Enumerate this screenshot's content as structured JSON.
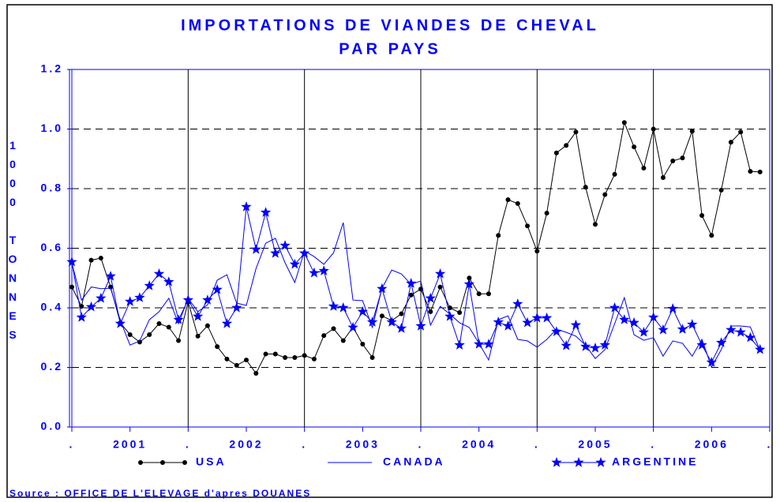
{
  "chart_data": {
    "type": "line",
    "title_lines": [
      "IMPORTATIONS DE VIANDES DE CHEVAL",
      "PAR PAYS"
    ],
    "y_label": "1000 TONNES",
    "source": "Source : OFFICE DE L'ELEVAGE d'apres DOUANES",
    "x": [
      0,
      1,
      2,
      3,
      4,
      5,
      6,
      7,
      8,
      9,
      10,
      11,
      12,
      13,
      14,
      15,
      16,
      17,
      18,
      19,
      20,
      21,
      22,
      23,
      24,
      25,
      26,
      27,
      28,
      29,
      30,
      31,
      32,
      33,
      34,
      35,
      36,
      37,
      38,
      39,
      40,
      41,
      42,
      43,
      44,
      45,
      46,
      47,
      48,
      49,
      50,
      51,
      52,
      53,
      54,
      55,
      56,
      57,
      58,
      59,
      60,
      61,
      62,
      63,
      64,
      65,
      66,
      67,
      68,
      69,
      70,
      71
    ],
    "series": [
      {
        "name": "USA",
        "color": "#000000",
        "marker": "circle",
        "values": [
          0.47,
          0.405,
          0.56,
          0.567,
          0.47,
          0.35,
          0.31,
          0.285,
          0.31,
          0.347,
          0.335,
          0.29,
          0.42,
          0.305,
          0.34,
          0.27,
          0.228,
          0.207,
          0.225,
          0.18,
          0.245,
          0.245,
          0.233,
          0.233,
          0.24,
          0.228,
          0.307,
          0.33,
          0.29,
          0.335,
          0.278,
          0.233,
          0.373,
          0.357,
          0.38,
          0.443,
          0.463,
          0.387,
          0.47,
          0.4,
          0.384,
          0.5,
          0.447,
          0.447,
          0.643,
          0.763,
          0.75,
          0.675,
          0.59,
          0.718,
          0.92,
          0.945,
          0.99,
          0.805,
          0.68,
          0.78,
          0.848,
          1.022,
          0.94,
          0.869,
          1.0,
          0.837,
          0.893,
          0.903,
          0.993,
          0.71,
          0.643,
          0.795,
          0.956,
          0.99,
          0.858,
          0.856
        ]
      },
      {
        "name": "CANADA",
        "color": "#0000ff",
        "marker": "none",
        "values": [
          0.55,
          0.426,
          0.47,
          0.464,
          0.466,
          0.358,
          0.275,
          0.289,
          0.36,
          0.387,
          0.432,
          0.347,
          0.432,
          0.387,
          0.41,
          0.493,
          0.511,
          0.416,
          0.408,
          0.532,
          0.617,
          0.633,
          0.551,
          0.485,
          0.591,
          0.572,
          0.546,
          0.585,
          0.686,
          0.426,
          0.424,
          0.334,
          0.466,
          0.527,
          0.514,
          0.479,
          0.49,
          0.342,
          0.405,
          0.379,
          0.35,
          0.334,
          0.281,
          0.225,
          0.36,
          0.373,
          0.294,
          0.289,
          0.268,
          0.294,
          0.328,
          0.318,
          0.305,
          0.275,
          0.23,
          0.26,
          0.347,
          0.434,
          0.31,
          0.291,
          0.3,
          0.238,
          0.289,
          0.281,
          0.238,
          0.294,
          0.201,
          0.26,
          0.339,
          0.339,
          0.336,
          0.257
        ]
      },
      {
        "name": "ARGENTINE",
        "color": "#0000ff",
        "marker": "star",
        "values": [
          0.554,
          0.368,
          0.403,
          0.432,
          0.506,
          0.347,
          0.421,
          0.434,
          0.474,
          0.514,
          0.487,
          0.36,
          0.426,
          0.371,
          0.426,
          0.461,
          0.347,
          0.4,
          0.739,
          0.596,
          0.72,
          0.583,
          0.609,
          0.546,
          0.583,
          0.517,
          0.524,
          0.405,
          0.4,
          0.334,
          0.387,
          0.352,
          0.464,
          0.352,
          0.331,
          0.482,
          0.339,
          0.432,
          0.514,
          0.371,
          0.275,
          0.479,
          0.278,
          0.278,
          0.352,
          0.339,
          0.413,
          0.35,
          0.366,
          0.366,
          0.32,
          0.273,
          0.342,
          0.27,
          0.265,
          0.275,
          0.4,
          0.36,
          0.35,
          0.318,
          0.368,
          0.326,
          0.397,
          0.328,
          0.344,
          0.275,
          0.217,
          0.283,
          0.326,
          0.318,
          0.3,
          0.26
        ]
      }
    ],
    "xlim": [
      0,
      72
    ],
    "xticks": [
      {
        "value": 0,
        "label": "."
      },
      {
        "value": 6,
        "label": "2001"
      },
      {
        "value": 12,
        "label": "."
      },
      {
        "value": 18,
        "label": "2002"
      },
      {
        "value": 24,
        "label": "."
      },
      {
        "value": 30,
        "label": "2003"
      },
      {
        "value": 36,
        "label": "."
      },
      {
        "value": 42,
        "label": "2004"
      },
      {
        "value": 48,
        "label": "."
      },
      {
        "value": 54,
        "label": "2005"
      },
      {
        "value": 60,
        "label": "."
      },
      {
        "value": 66,
        "label": "2006"
      },
      {
        "value": 72,
        "label": "."
      }
    ],
    "ylim": [
      0,
      1.2
    ],
    "yticks": [
      {
        "value": 0,
        "label": "0.0"
      },
      0.2,
      0.4,
      0.6,
      0.8,
      {
        "value": 1,
        "label": "1.0"
      },
      1.2
    ],
    "grid": true
  }
}
